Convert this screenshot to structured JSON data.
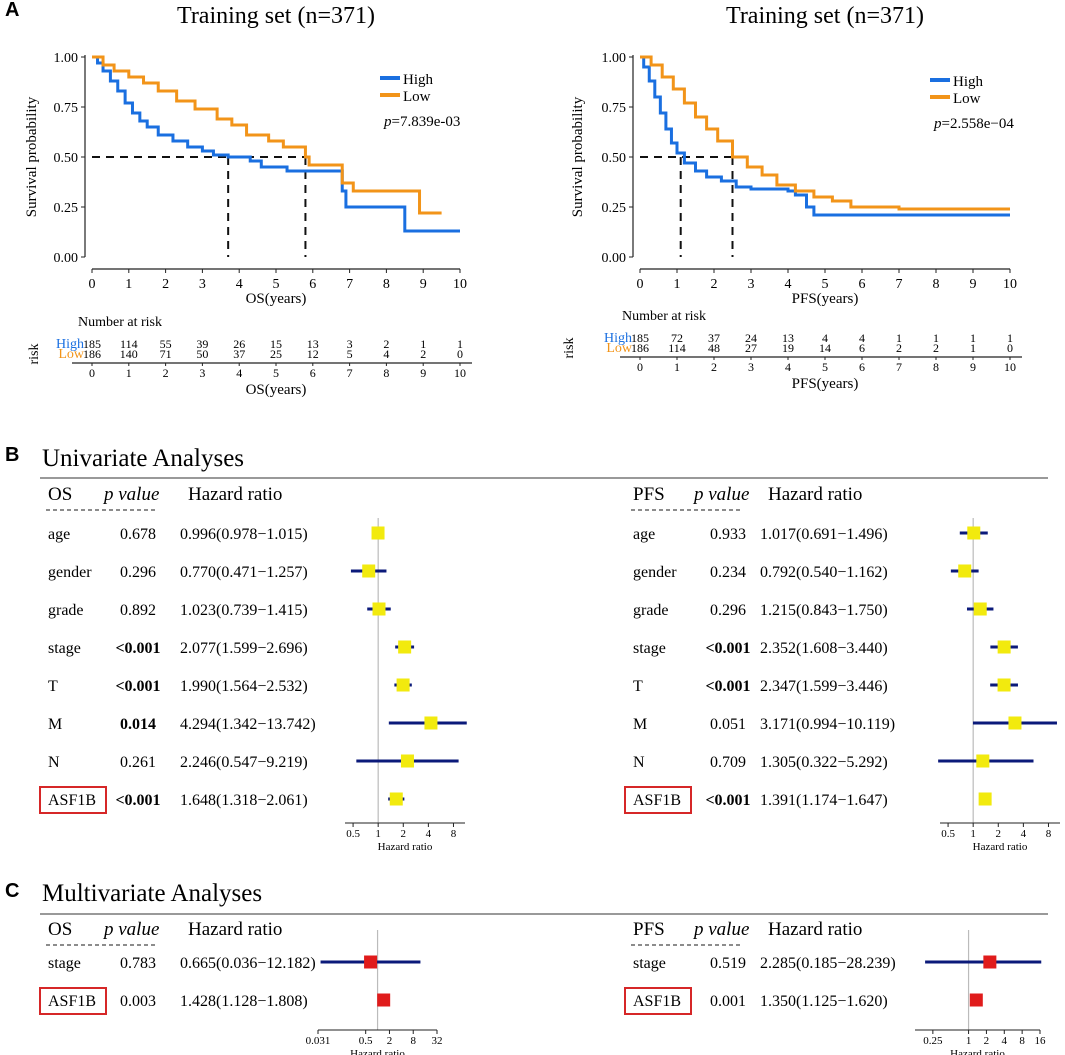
{
  "panels": {
    "a": "A",
    "b": "B",
    "c": "C"
  },
  "chart_data": [
    {
      "type": "line",
      "subtype": "kaplan-meier",
      "title": "Training set (n=371)",
      "xlabel": "OS(years)",
      "ylabel": "Survival probability",
      "xlim": [
        0,
        10
      ],
      "ylim": [
        0,
        1
      ],
      "x_ticks": [
        "0",
        "1",
        "2",
        "3",
        "4",
        "5",
        "6",
        "7",
        "8",
        "9",
        "10"
      ],
      "y_ticks": [
        "0.00",
        "0.25",
        "0.50",
        "0.75",
        "1.00"
      ],
      "legend": [
        "High",
        "Low"
      ],
      "pvalue_prefix": "p",
      "pvalue_text": "=7.839e-03",
      "median_survival": [
        3.7,
        5.8
      ],
      "series": [
        {
          "name": "High",
          "color": "#1a6fe0",
          "points": [
            [
              0,
              1.0
            ],
            [
              0.15,
              0.97
            ],
            [
              0.3,
              0.93
            ],
            [
              0.5,
              0.88
            ],
            [
              0.7,
              0.83
            ],
            [
              0.9,
              0.77
            ],
            [
              1.1,
              0.72
            ],
            [
              1.3,
              0.68
            ],
            [
              1.5,
              0.65
            ],
            [
              1.8,
              0.61
            ],
            [
              2.2,
              0.58
            ],
            [
              2.6,
              0.55
            ],
            [
              3.0,
              0.53
            ],
            [
              3.3,
              0.51
            ],
            [
              3.7,
              0.5
            ],
            [
              4.3,
              0.48
            ],
            [
              4.6,
              0.45
            ],
            [
              5.3,
              0.43
            ],
            [
              6.8,
              0.43
            ],
            [
              6.8,
              0.33
            ],
            [
              6.9,
              0.25
            ],
            [
              8.5,
              0.25
            ],
            [
              8.5,
              0.13
            ],
            [
              10,
              0.13
            ]
          ]
        },
        {
          "name": "Low",
          "color": "#f29419",
          "points": [
            [
              0,
              1.0
            ],
            [
              0.3,
              0.96
            ],
            [
              0.6,
              0.93
            ],
            [
              1.0,
              0.9
            ],
            [
              1.4,
              0.87
            ],
            [
              1.8,
              0.83
            ],
            [
              2.3,
              0.78
            ],
            [
              2.8,
              0.74
            ],
            [
              3.4,
              0.69
            ],
            [
              3.8,
              0.66
            ],
            [
              4.2,
              0.61
            ],
            [
              4.8,
              0.58
            ],
            [
              5.2,
              0.55
            ],
            [
              5.8,
              0.5
            ],
            [
              5.9,
              0.46
            ],
            [
              6.6,
              0.46
            ],
            [
              6.8,
              0.37
            ],
            [
              7.1,
              0.33
            ],
            [
              8.9,
              0.33
            ],
            [
              8.9,
              0.22
            ],
            [
              9.5,
              0.22
            ]
          ]
        }
      ],
      "risk_table": {
        "title": "Number at risk",
        "row_label": "risk",
        "rows": [
          {
            "name": "High",
            "color": "#1a6fe0",
            "values": [
              "185",
              "114",
              "55",
              "39",
              "26",
              "15",
              "13",
              "3",
              "2",
              "1",
              "1"
            ]
          },
          {
            "name": "Low",
            "color": "#f29419",
            "values": [
              "186",
              "140",
              "71",
              "50",
              "37",
              "25",
              "12",
              "5",
              "4",
              "2",
              "0"
            ]
          }
        ],
        "x_ticks": [
          "0",
          "1",
          "2",
          "3",
          "4",
          "5",
          "6",
          "7",
          "8",
          "9",
          "10"
        ],
        "xlabel": "OS(years)"
      }
    },
    {
      "type": "line",
      "subtype": "kaplan-meier",
      "title": "Training set (n=371)",
      "xlabel": "PFS(years)",
      "ylabel": "Survival probability",
      "xlim": [
        0,
        10
      ],
      "ylim": [
        0,
        1
      ],
      "x_ticks": [
        "0",
        "1",
        "2",
        "3",
        "4",
        "5",
        "6",
        "7",
        "8",
        "9",
        "10"
      ],
      "y_ticks": [
        "0.00",
        "0.25",
        "0.50",
        "0.75",
        "1.00"
      ],
      "legend": [
        "High",
        "Low"
      ],
      "pvalue_prefix": "p",
      "pvalue_text": "=2.558e−04",
      "median_survival": [
        1.1,
        2.5
      ],
      "series": [
        {
          "name": "High",
          "color": "#1a6fe0",
          "points": [
            [
              0,
              1.0
            ],
            [
              0.1,
              0.95
            ],
            [
              0.25,
              0.88
            ],
            [
              0.4,
              0.8
            ],
            [
              0.55,
              0.72
            ],
            [
              0.7,
              0.64
            ],
            [
              0.85,
              0.57
            ],
            [
              1.0,
              0.52
            ],
            [
              1.2,
              0.47
            ],
            [
              1.5,
              0.43
            ],
            [
              1.8,
              0.4
            ],
            [
              2.2,
              0.38
            ],
            [
              2.6,
              0.35
            ],
            [
              3.0,
              0.34
            ],
            [
              4.0,
              0.33
            ],
            [
              4.2,
              0.31
            ],
            [
              4.5,
              0.25
            ],
            [
              4.7,
              0.21
            ],
            [
              10,
              0.21
            ]
          ]
        },
        {
          "name": "Low",
          "color": "#f29419",
          "points": [
            [
              0,
              1.0
            ],
            [
              0.3,
              0.96
            ],
            [
              0.6,
              0.9
            ],
            [
              0.9,
              0.84
            ],
            [
              1.2,
              0.77
            ],
            [
              1.5,
              0.7
            ],
            [
              1.8,
              0.64
            ],
            [
              2.1,
              0.58
            ],
            [
              2.5,
              0.5
            ],
            [
              2.9,
              0.45
            ],
            [
              3.3,
              0.41
            ],
            [
              3.7,
              0.36
            ],
            [
              4.2,
              0.33
            ],
            [
              4.7,
              0.3
            ],
            [
              5.2,
              0.28
            ],
            [
              5.7,
              0.25
            ],
            [
              7.0,
              0.24
            ],
            [
              10,
              0.24
            ]
          ]
        }
      ],
      "risk_table": {
        "title": "Number at risk",
        "row_label": "risk",
        "rows": [
          {
            "name": "High",
            "color": "#1a6fe0",
            "values": [
              "185",
              "72",
              "37",
              "24",
              "13",
              "4",
              "4",
              "1",
              "1",
              "1",
              "1"
            ]
          },
          {
            "name": "Low",
            "color": "#f29419",
            "values": [
              "186",
              "114",
              "48",
              "27",
              "19",
              "14",
              "6",
              "2",
              "2",
              "1",
              "0"
            ]
          }
        ],
        "x_ticks": [
          "0",
          "1",
          "2",
          "3",
          "4",
          "5",
          "6",
          "7",
          "8",
          "9",
          "10"
        ],
        "xlabel": "PFS(years)"
      }
    },
    {
      "type": "forest",
      "title": "Univariate Analyses",
      "group": "OS",
      "columns": [
        "OS",
        "p value",
        "Hazard ratio"
      ],
      "xscale": "log2",
      "xlim": [
        0.4,
        11
      ],
      "x_ticks": [
        "0.5",
        "1",
        "2",
        "4",
        "8"
      ],
      "xlabel": "Hazard ratio",
      "marker_color": "#f2ea0e",
      "rows": [
        {
          "name": "age",
          "p": "0.678",
          "hr_text": "0.996(0.978−1.015)",
          "hr": 0.996,
          "lo": 0.978,
          "hi": 1.015,
          "sig": false
        },
        {
          "name": "gender",
          "p": "0.296",
          "hr_text": "0.770(0.471−1.257)",
          "hr": 0.77,
          "lo": 0.471,
          "hi": 1.257,
          "sig": false
        },
        {
          "name": "grade",
          "p": "0.892",
          "hr_text": "1.023(0.739−1.415)",
          "hr": 1.023,
          "lo": 0.739,
          "hi": 1.415,
          "sig": false
        },
        {
          "name": "stage",
          "p": "<0.001",
          "hr_text": "2.077(1.599−2.696)",
          "hr": 2.077,
          "lo": 1.599,
          "hi": 2.696,
          "sig": true
        },
        {
          "name": "T",
          "p": "<0.001",
          "hr_text": "1.990(1.564−2.532)",
          "hr": 1.99,
          "lo": 1.564,
          "hi": 2.532,
          "sig": true
        },
        {
          "name": "M",
          "p": "0.014",
          "hr_text": "4.294(1.342−13.742)",
          "hr": 4.294,
          "lo": 1.342,
          "hi": 13.742,
          "sig": true
        },
        {
          "name": "N",
          "p": "0.261",
          "hr_text": "2.246(0.547−9.219)",
          "hr": 2.246,
          "lo": 0.547,
          "hi": 9.219,
          "sig": false
        },
        {
          "name": "ASF1B",
          "p": "<0.001",
          "hr_text": "1.648(1.318−2.061)",
          "hr": 1.648,
          "lo": 1.318,
          "hi": 2.061,
          "sig": true,
          "boxed": true
        }
      ]
    },
    {
      "type": "forest",
      "title": "Univariate Analyses",
      "group": "PFS",
      "columns": [
        "PFS",
        "p value",
        "Hazard ratio"
      ],
      "xscale": "log2",
      "xlim": [
        0.4,
        11
      ],
      "x_ticks": [
        "0.5",
        "1",
        "2",
        "4",
        "8"
      ],
      "xlabel": "Hazard ratio",
      "marker_color": "#f2ea0e",
      "rows": [
        {
          "name": "age",
          "p": "0.933",
          "hr_text": "1.017(0.691−1.496)",
          "hr": 1.017,
          "lo": 0.691,
          "hi": 1.496,
          "sig": false
        },
        {
          "name": "gender",
          "p": "0.234",
          "hr_text": "0.792(0.540−1.162)",
          "hr": 0.792,
          "lo": 0.54,
          "hi": 1.162,
          "sig": false
        },
        {
          "name": "grade",
          "p": "0.296",
          "hr_text": "1.215(0.843−1.750)",
          "hr": 1.215,
          "lo": 0.843,
          "hi": 1.75,
          "sig": false
        },
        {
          "name": "stage",
          "p": "<0.001",
          "hr_text": "2.352(1.608−3.440)",
          "hr": 2.352,
          "lo": 1.608,
          "hi": 3.44,
          "sig": true
        },
        {
          "name": "T",
          "p": "<0.001",
          "hr_text": "2.347(1.599−3.446)",
          "hr": 2.347,
          "lo": 1.599,
          "hi": 3.446,
          "sig": true
        },
        {
          "name": "M",
          "p": "0.051",
          "hr_text": "3.171(0.994−10.119)",
          "hr": 3.171,
          "lo": 0.994,
          "hi": 10.119,
          "sig": false
        },
        {
          "name": "N",
          "p": "0.709",
          "hr_text": "1.305(0.322−5.292)",
          "hr": 1.305,
          "lo": 0.322,
          "hi": 5.292,
          "sig": false
        },
        {
          "name": "ASF1B",
          "p": "<0.001",
          "hr_text": "1.391(1.174−1.647)",
          "hr": 1.391,
          "lo": 1.174,
          "hi": 1.647,
          "sig": true,
          "boxed": true
        }
      ]
    },
    {
      "type": "forest",
      "title": "Multivariate Analyses",
      "group": "OS",
      "columns": [
        "OS",
        "p value",
        "Hazard ratio"
      ],
      "xscale": "log2",
      "xlim": [
        0.031,
        32
      ],
      "x_ticks": [
        "0.031",
        "0.5",
        "2",
        "8",
        "32"
      ],
      "xlabel": "Hazard ratio",
      "marker_color": "#e01b1b",
      "rows": [
        {
          "name": "stage",
          "p": "0.783",
          "hr_text": "0.665(0.036−12.182)",
          "hr": 0.665,
          "lo": 0.036,
          "hi": 12.182,
          "sig": false
        },
        {
          "name": "ASF1B",
          "p": "0.003",
          "hr_text": "1.428(1.128−1.808)",
          "hr": 1.428,
          "lo": 1.128,
          "hi": 1.808,
          "sig": false,
          "boxed": true
        }
      ]
    },
    {
      "type": "forest",
      "title": "Multivariate Analyses",
      "group": "PFS",
      "columns": [
        "PFS",
        "p value",
        "Hazard ratio"
      ],
      "xscale": "log2",
      "xlim": [
        0.125,
        16
      ],
      "x_ticks": [
        "0.25",
        "1",
        "2",
        "4",
        "8",
        "16"
      ],
      "xlabel": "Hazard ratio",
      "marker_color": "#e01b1b",
      "rows": [
        {
          "name": "stage",
          "p": "0.519",
          "hr_text": "2.285(0.185−28.239)",
          "hr": 2.285,
          "lo": 0.185,
          "hi": 28.239,
          "sig": false
        },
        {
          "name": "ASF1B",
          "p": "0.001",
          "hr_text": "1.350(1.125−1.620)",
          "hr": 1.35,
          "lo": 1.125,
          "hi": 1.62,
          "sig": false,
          "boxed": true
        }
      ]
    }
  ]
}
